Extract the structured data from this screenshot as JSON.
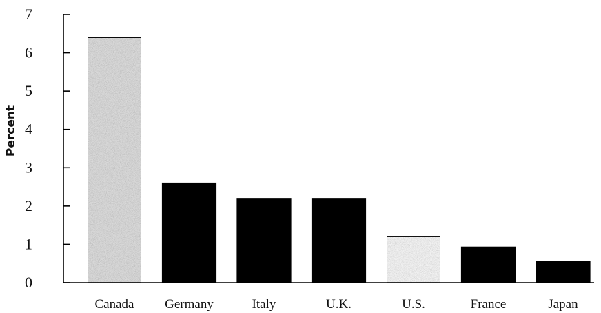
{
  "chart_data": {
    "type": "bar",
    "title": "",
    "xlabel": "",
    "ylabel": "Percent",
    "ylim": [
      0,
      7
    ],
    "yticks": [
      0,
      1,
      2,
      3,
      4,
      5,
      6,
      7
    ],
    "categories": [
      "Canada",
      "Germany",
      "Italy",
      "U.K.",
      "U.S.",
      "France",
      "Japan"
    ],
    "values": [
      6.4,
      2.6,
      2.2,
      2.2,
      1.2,
      0.93,
      0.55
    ],
    "grid": false,
    "legend": "none",
    "bar_colors": [
      "#d9d9d9",
      "#000000",
      "#000000",
      "#000000",
      "#f2f2f2",
      "#000000",
      "#000000"
    ]
  }
}
